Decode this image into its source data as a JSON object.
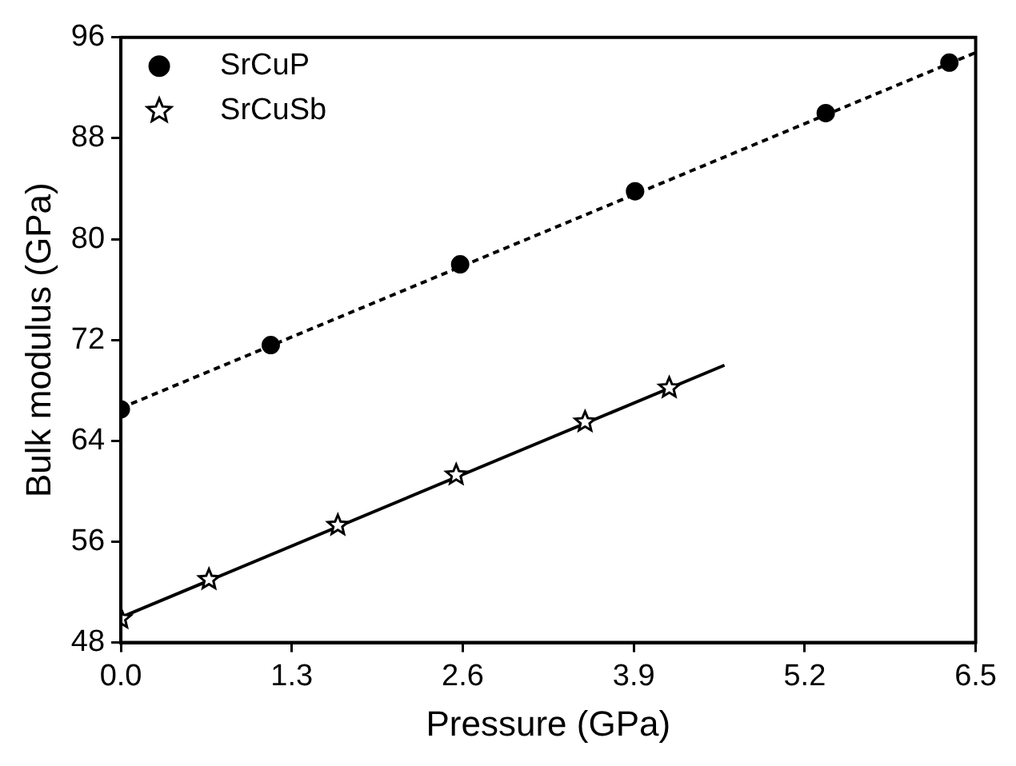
{
  "chart_data": {
    "type": "scatter",
    "xlabel": "Pressure (GPa)",
    "ylabel": "Bulk modulus (GPa)",
    "xlim": [
      0,
      6.5
    ],
    "ylim": [
      48,
      96
    ],
    "xticks": [
      {
        "value": 0,
        "label": "0.0"
      },
      1.3,
      2.6,
      3.9,
      5.2,
      6.5
    ],
    "yticks": [
      48,
      56,
      64,
      72,
      80,
      88,
      96
    ],
    "grid": false,
    "legend": "top left",
    "series": [
      {
        "name": "SrCuP",
        "type": "scatter",
        "color": "#000000",
        "marker": "circle",
        "x": [
          0,
          1.14,
          2.58,
          3.91,
          5.36,
          6.3
        ],
        "values": [
          66.5,
          71.6,
          78.0,
          83.8,
          90.0,
          94.0
        ]
      },
      {
        "name": "SrCuSb",
        "type": "scatter",
        "color": "#000000",
        "marker": "star",
        "x": [
          0,
          0.67,
          1.65,
          2.55,
          3.53,
          4.17
        ],
        "values": [
          49.9,
          53.0,
          57.3,
          61.3,
          65.5,
          68.2
        ]
      },
      {
        "type": "line",
        "color": "#000000",
        "marker": "none",
        "line_style": "dashed",
        "x": [
          0,
          6.5
        ],
        "values": [
          66.6,
          94.8
        ]
      },
      {
        "type": "line",
        "color": "#000000",
        "marker": "none",
        "line_style": "solid",
        "x": [
          0,
          4.59
        ],
        "values": [
          50.0,
          70.0
        ]
      }
    ]
  }
}
